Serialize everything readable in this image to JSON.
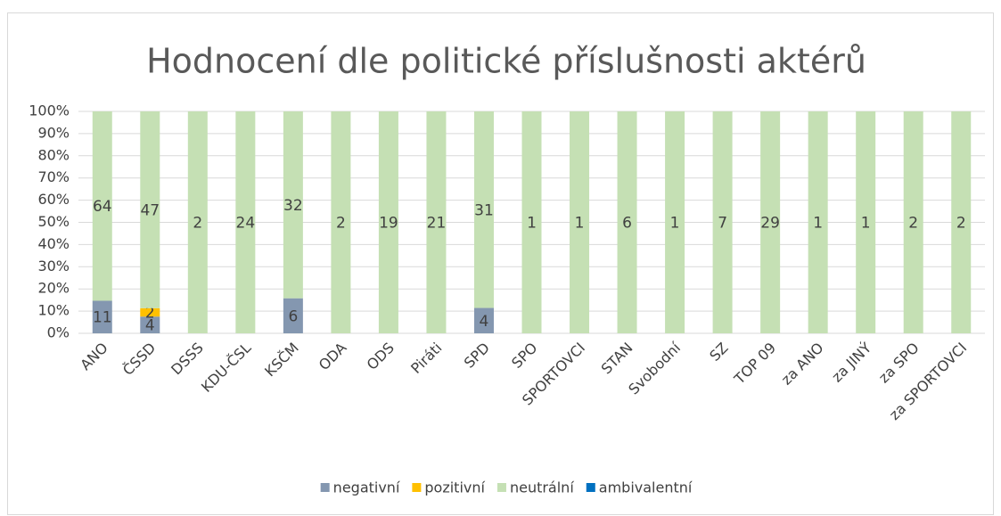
{
  "chart_data": {
    "type": "bar",
    "stacking": "percent",
    "title": "Hodnocení dle politické příslušnosti aktérů",
    "categories": [
      "ANO",
      "ČSSD",
      "DSSS",
      "KDU-ČSL",
      "KSČM",
      "ODA",
      "ODS",
      "Piráti",
      "SPD",
      "SPO",
      "SPORTOVCI",
      "STAN",
      "Svobodní",
      "SZ",
      "TOP 09",
      "za ANO",
      "za JINÝ",
      "za SPO",
      "za SPORTOVCI"
    ],
    "series": [
      {
        "name": "negativní",
        "color": "#8497b0",
        "values": [
          11,
          4,
          null,
          null,
          6,
          null,
          null,
          null,
          4,
          null,
          null,
          null,
          null,
          null,
          null,
          null,
          null,
          null,
          null
        ]
      },
      {
        "name": "pozitivní",
        "color": "#ffc000",
        "values": [
          null,
          2,
          null,
          null,
          null,
          null,
          null,
          null,
          null,
          null,
          null,
          null,
          null,
          null,
          null,
          null,
          null,
          null,
          null
        ]
      },
      {
        "name": "neutrální",
        "color": "#c5e0b4",
        "values": [
          64,
          47,
          2,
          24,
          32,
          2,
          19,
          21,
          31,
          1,
          1,
          6,
          1,
          7,
          29,
          1,
          1,
          2,
          2
        ]
      },
      {
        "name": "ambivalentní",
        "color": "#0070c0",
        "values": [
          null,
          null,
          null,
          null,
          null,
          null,
          null,
          null,
          null,
          null,
          null,
          null,
          null,
          null,
          null,
          null,
          null,
          null,
          null
        ]
      }
    ],
    "ylim": [
      0,
      100
    ],
    "yticks": [
      {
        "value": 0,
        "label": "0%"
      },
      {
        "value": 10,
        "label": "10%"
      },
      {
        "value": 20,
        "label": "20%"
      },
      {
        "value": 30,
        "label": "30%"
      },
      {
        "value": 40,
        "label": "40%"
      },
      {
        "value": 50,
        "label": "50%"
      },
      {
        "value": 60,
        "label": "60%"
      },
      {
        "value": 70,
        "label": "70%"
      },
      {
        "value": 80,
        "label": "80%"
      },
      {
        "value": 90,
        "label": "90%"
      },
      {
        "value": 100,
        "label": "100%"
      }
    ],
    "grid": true,
    "legend": "bottom"
  }
}
